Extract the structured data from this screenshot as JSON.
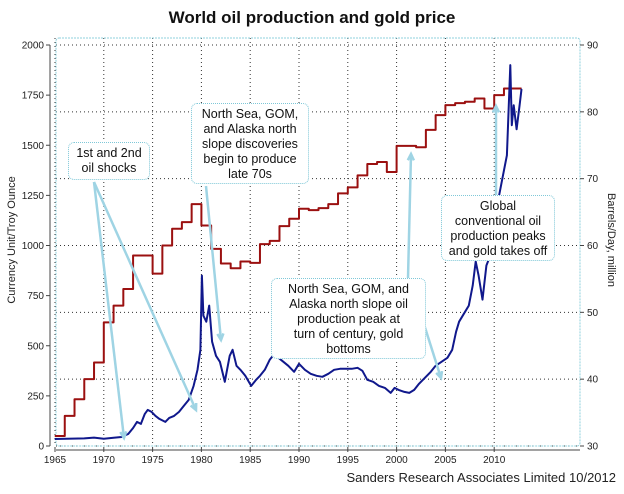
{
  "chart_data": {
    "type": "line",
    "title": "World oil production and gold price",
    "credit": "Sanders Research Associates Limited 10/2012",
    "xlabel": "",
    "ylabel_left": "Currency Unit/Troy Ounce",
    "ylabel_right": "Barrels/Day, million",
    "xlim": [
      1965,
      2013
    ],
    "ylim_left": [
      0,
      2000
    ],
    "ylim_right": [
      30,
      90
    ],
    "x_ticks": [
      "1965",
      "1970",
      "1975",
      "1980",
      "1985",
      "1990",
      "1995",
      "2000",
      "2005",
      "2010"
    ],
    "y_ticks_left": [
      "0",
      "250",
      "500",
      "750",
      "1000",
      "1250",
      "1500",
      "1750",
      "2000"
    ],
    "y_ticks_right": [
      "30",
      "40",
      "50",
      "60",
      "70",
      "80",
      "90"
    ],
    "grid": true,
    "series": [
      {
        "name": "World oil production (Barrels/Day, million)",
        "axis": "right",
        "style": "step",
        "color": "#9b1010",
        "x": [
          1965,
          1966,
          1967,
          1968,
          1969,
          1970,
          1971,
          1972,
          1973,
          1974,
          1975,
          1976,
          1977,
          1978,
          1979,
          1980,
          1981,
          1982,
          1983,
          1984,
          1985,
          1986,
          1987,
          1988,
          1989,
          1990,
          1991,
          1992,
          1993,
          1994,
          1995,
          1996,
          1997,
          1998,
          1999,
          2000,
          2001,
          2002,
          2003,
          2004,
          2005,
          2006,
          2007,
          2008,
          2009,
          2010,
          2011,
          2012
        ],
        "values": [
          31.5,
          34.5,
          37.0,
          40.0,
          42.5,
          48.5,
          51.0,
          53.5,
          58.5,
          58.5,
          55.8,
          60.0,
          62.5,
          63.5,
          66.2,
          63.0,
          59.5,
          57.3,
          56.6,
          57.6,
          57.4,
          60.2,
          60.7,
          62.9,
          64.0,
          65.5,
          65.3,
          65.6,
          66.2,
          67.8,
          68.7,
          70.5,
          72.2,
          72.5,
          71.0,
          74.9,
          74.9,
          74.7,
          77.3,
          79.5,
          81.0,
          81.3,
          81.5,
          82.0,
          80.5,
          82.5,
          83.5,
          83.5
        ]
      },
      {
        "name": "Gold price (Currency Unit/Troy Ounce)",
        "axis": "left",
        "style": "line",
        "color": "#10188c",
        "x": [
          1965,
          1968,
          1969,
          1970,
          1971,
          1971.8,
          1972.5,
          1973,
          1973.4,
          1973.8,
          1974.2,
          1974.5,
          1974.9,
          1975.3,
          1975.7,
          1976.3,
          1976.7,
          1977.2,
          1977.7,
          1978.2,
          1978.7,
          1979.2,
          1979.6,
          1979.9,
          1980.05,
          1980.2,
          1980.5,
          1980.8,
          1981.1,
          1981.5,
          1981.9,
          1982.4,
          1982.9,
          1983.2,
          1983.6,
          1984.0,
          1984.5,
          1985.1,
          1985.6,
          1986.0,
          1986.5,
          1987.0,
          1987.5,
          1987.9,
          1988.4,
          1988.9,
          1989.5,
          1990.0,
          1990.6,
          1991.2,
          1991.8,
          1992.4,
          1993.0,
          1993.6,
          1994.2,
          1994.8,
          1995.4,
          1996.0,
          1996.5,
          1997.0,
          1997.6,
          1998.2,
          1998.8,
          1999.4,
          1999.8,
          2000.2,
          2000.8,
          2001.3,
          2001.8,
          2002.3,
          2002.9,
          2003.5,
          2004.0,
          2004.6,
          2005.2,
          2005.7,
          2006.1,
          2006.4,
          2006.9,
          2007.4,
          2007.8,
          2008.1,
          2008.4,
          2008.8,
          2009.2,
          2009.6,
          2010.0,
          2010.5,
          2010.9,
          2011.3,
          2011.65,
          2011.8,
          2012.0,
          2012.3,
          2012.6,
          2012.8
        ],
        "values": [
          35,
          38,
          42,
          36,
          41,
          45,
          60,
          90,
          120,
          110,
          160,
          180,
          170,
          150,
          135,
          120,
          140,
          150,
          170,
          200,
          230,
          300,
          380,
          480,
          850,
          650,
          620,
          700,
          520,
          450,
          420,
          320,
          450,
          480,
          400,
          380,
          350,
          300,
          330,
          350,
          380,
          430,
          460,
          440,
          420,
          400,
          370,
          410,
          380,
          360,
          350,
          345,
          360,
          380,
          385,
          385,
          385,
          390,
          375,
          330,
          320,
          300,
          290,
          265,
          290,
          280,
          270,
          265,
          280,
          310,
          340,
          370,
          400,
          420,
          440,
          480,
          570,
          620,
          660,
          700,
          800,
          920,
          850,
          730,
          900,
          950,
          1100,
          1250,
          1350,
          1450,
          1900,
          1600,
          1700,
          1580,
          1700,
          1780
        ]
      }
    ],
    "annotations": [
      {
        "text": "1st and 2nd oil shocks",
        "lines": [
          "1st and 2nd",
          "oil shocks"
        ],
        "points_to_years": [
          1973,
          1979
        ]
      },
      {
        "text": "North Sea, GOM, and Alaska north slope discoveries begin to produce late 70s",
        "lines": [
          "North Sea, GOM,",
          "and Alaska north",
          "slope discoveries",
          "begin to produce",
          "late 70s"
        ],
        "points_to_years": [
          1979.8
        ]
      },
      {
        "text": "North Sea, GOM, and Alaska north slope oil production peak at turn of century, gold bottoms",
        "lines": [
          "North Sea, GOM, and",
          "Alaska north slope oil",
          "production peak at",
          "turn of century, gold",
          "bottoms"
        ],
        "points_to_years": [
          2000,
          2001
        ]
      },
      {
        "text": "Global conventional oil production peaks and gold takes off",
        "lines": [
          "Global",
          "conventional oil",
          "production peaks",
          "and gold takes off"
        ],
        "points_to_years": [
          2005
        ]
      }
    ]
  }
}
